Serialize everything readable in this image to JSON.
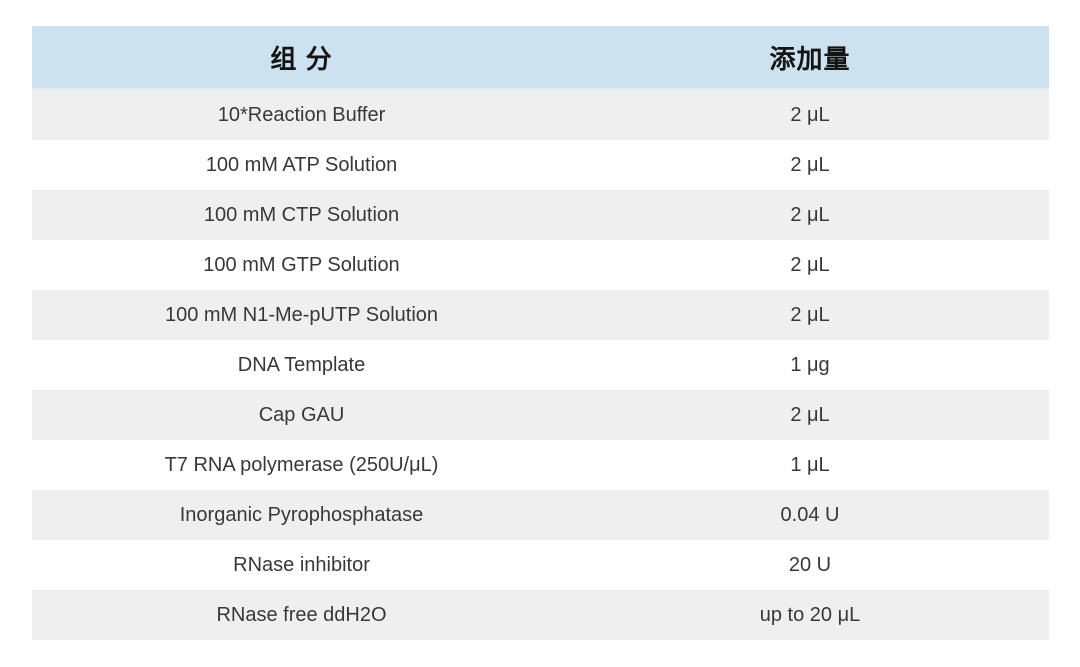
{
  "table": {
    "columns": [
      {
        "key": "component",
        "label": "组 分"
      },
      {
        "key": "amount",
        "label": "添加量"
      }
    ],
    "rows": [
      {
        "component": "10*Reaction Buffer",
        "amount": "2 μL"
      },
      {
        "component": "100 mM ATP Solution",
        "amount": "2 μL"
      },
      {
        "component": "100 mM CTP Solution",
        "amount": "2 μL"
      },
      {
        "component": "100 mM GTP Solution",
        "amount": "2 μL"
      },
      {
        "component": "100 mM N1-Me-pUTP Solution",
        "amount": "2 μL"
      },
      {
        "component": "DNA Template",
        "amount": "1 μg"
      },
      {
        "component": "Cap GAU",
        "amount": "2 μL"
      },
      {
        "component": "T7 RNA polymerase (250U/μL)",
        "amount": "1 μL"
      },
      {
        "component": "Inorganic Pyrophosphatase",
        "amount": "0.04 U"
      },
      {
        "component": "RNase inhibitor",
        "amount": "20 U"
      },
      {
        "component": "RNase free ddH2O",
        "amount": "up to 20 μL"
      }
    ],
    "colors": {
      "header_bg": "#cce2ef",
      "stripe_bg": "#efefef",
      "row_bg": "#ffffff",
      "header_text": "#141414",
      "body_text": "#383838"
    }
  }
}
